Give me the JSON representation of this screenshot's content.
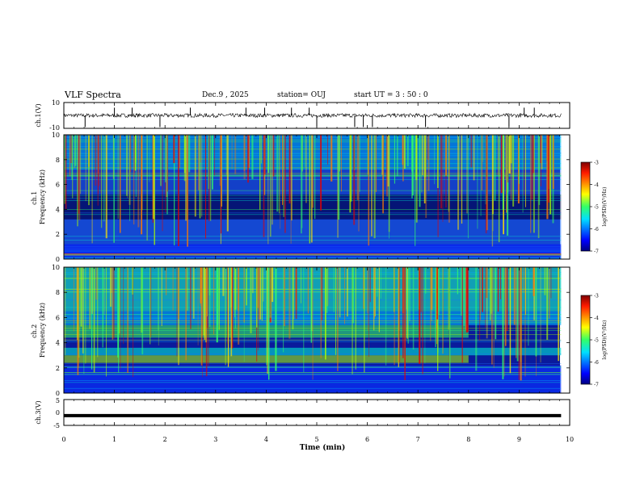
{
  "header": {
    "title": "VLF Spectra",
    "date": "Dec.9  , 2025",
    "station": "station= OUJ",
    "start": "start  UT  =   3  : 50 : 0"
  },
  "chart_data": [
    {
      "type": "line",
      "id": "ch1-waveform",
      "ylabel": "ch.1(V)",
      "ylim": [
        -10,
        10
      ],
      "yticks": [
        "10",
        "-10"
      ],
      "xlim": [
        0,
        10
      ],
      "baseline": 0,
      "noise_amplitude": 1.5,
      "spike_times_min": [
        0.42,
        1.0,
        1.35,
        1.9,
        2.5,
        3.6,
        3.97,
        4.5,
        4.85,
        5.0,
        5.75,
        5.92,
        6.1,
        7.15,
        8.8,
        9.1,
        9.3
      ]
    },
    {
      "type": "heatmap",
      "id": "ch1-spectrogram",
      "ylabel": "ch.1\nFrequency (kHz)",
      "ylabel_lines": [
        "ch.1",
        "Frequency  (kHz)"
      ],
      "ylim": [
        0,
        10
      ],
      "yticks": [
        "0",
        "2",
        "4",
        "6",
        "8",
        "10"
      ],
      "xlim": [
        0,
        9.83
      ],
      "colorbar": {
        "label": "log(PSD)(V²/Hz)",
        "range": [
          -7,
          -3
        ],
        "ticks": [
          "-3",
          "-4",
          "-5",
          "-6",
          "-7"
        ],
        "colormap": "jet"
      }
    },
    {
      "type": "heatmap",
      "id": "ch2-spectrogram",
      "ylabel": "ch.2\nFrequency (kHz)",
      "ylabel_lines": [
        "ch.2",
        "Frequency  (kHz)"
      ],
      "ylim": [
        0,
        10
      ],
      "yticks": [
        "0",
        "2",
        "4",
        "6",
        "8",
        "10"
      ],
      "xlim": [
        0,
        9.83
      ],
      "colorbar": {
        "label": "log(PSD)(V²/Hz)",
        "range": [
          -7,
          -3
        ],
        "ticks": [
          "-3",
          "-4",
          "-5",
          "-6",
          "-7"
        ],
        "colormap": "jet"
      }
    },
    {
      "type": "line",
      "id": "ch3-waveform",
      "ylabel": "ch.3(V)",
      "ylim": [
        -5,
        5
      ],
      "yticks": [
        "5",
        "0",
        "-5"
      ],
      "xlim": [
        0,
        10
      ],
      "baseline": -1.2
    }
  ],
  "xaxis": {
    "label": "Time  (min)",
    "ticks": [
      "0",
      "1",
      "2",
      "3",
      "4",
      "5",
      "6",
      "7",
      "8",
      "9",
      "10"
    ]
  }
}
